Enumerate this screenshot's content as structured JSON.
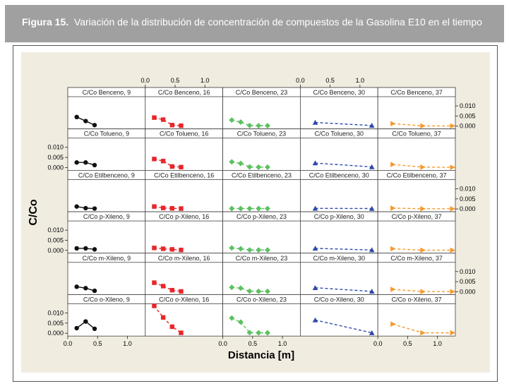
{
  "figure": {
    "label": "Figura 15.",
    "caption": "Variación de la distribución de concentración de compuestos de la Gasolina E10 en el tiempo"
  },
  "chart_data": {
    "type": "scatter",
    "title": "",
    "xlabel": "Distancia [m]",
    "ylabel": "C/Co",
    "xlim": [
      0,
      1.3
    ],
    "ylim": [
      0,
      0.0135
    ],
    "x_ticks": [
      0.0,
      0.5,
      1.0
    ],
    "x_tick_labels": [
      "0.0",
      "0.5",
      "1.0"
    ],
    "y_ticks": [
      0.0,
      0.005,
      0.01
    ],
    "y_tick_labels": [
      "0.000",
      "0.005",
      "0.010"
    ],
    "grid": false,
    "compounds": [
      "Benceno",
      "Tolueno",
      "Etilbenceno",
      "p-Xileno",
      "m-Xileno",
      "o-Xileno"
    ],
    "days": [
      9,
      16,
      23,
      30,
      37
    ],
    "series_colors": {
      "9": "#111111",
      "16": "#e8262b",
      "23": "#5cc160",
      "30": "#2e4aa8",
      "37": "#f59a2f"
    },
    "series_markers": {
      "9": "circle",
      "16": "square",
      "23": "diamond",
      "30": "triangle",
      "37": "triangle-right"
    },
    "panels": [
      {
        "title": "C/Co Benceno, 9",
        "row": 0,
        "col": 0,
        "x": [
          0.15,
          0.3,
          0.45
        ],
        "y": [
          0.0045,
          0.0025,
          0.0005
        ]
      },
      {
        "title": "C/Co Benceno, 16",
        "row": 0,
        "col": 1,
        "x": [
          0.15,
          0.3,
          0.45,
          0.6
        ],
        "y": [
          0.0042,
          0.0032,
          0.0005,
          0.0002
        ]
      },
      {
        "title": "C/Co Benceno, 23",
        "row": 0,
        "col": 2,
        "x": [
          0.15,
          0.3,
          0.45,
          0.6,
          0.75
        ],
        "y": [
          0.003,
          0.002,
          0.0003,
          0.0002,
          0.0002
        ]
      },
      {
        "title": "C/Co Benceno, 30",
        "row": 0,
        "col": 3,
        "x": [
          0.25,
          1.2
        ],
        "y": [
          0.0018,
          0.0003
        ]
      },
      {
        "title": "C/Co Benceno, 37",
        "row": 0,
        "col": 4,
        "x": [
          0.25,
          0.75,
          1.25
        ],
        "y": [
          0.0012,
          0.0001,
          0.0001
        ]
      },
      {
        "title": "C/Co Tolueno, 9",
        "row": 1,
        "col": 0,
        "x": [
          0.15,
          0.3,
          0.45
        ],
        "y": [
          0.0025,
          0.0025,
          0.0012
        ]
      },
      {
        "title": "C/Co Tolueno, 16",
        "row": 1,
        "col": 1,
        "x": [
          0.15,
          0.3,
          0.45,
          0.6
        ],
        "y": [
          0.0042,
          0.0032,
          0.0005,
          0.0002
        ]
      },
      {
        "title": "C/Co Tolueno, 23",
        "row": 1,
        "col": 2,
        "x": [
          0.15,
          0.3,
          0.45,
          0.6,
          0.75
        ],
        "y": [
          0.0028,
          0.002,
          0.0003,
          0.0002,
          0.0002
        ]
      },
      {
        "title": "C/Co Tolueno, 30",
        "row": 1,
        "col": 3,
        "x": [
          0.25,
          1.2
        ],
        "y": [
          0.0022,
          0.0003
        ]
      },
      {
        "title": "C/Co Tolueno, 37",
        "row": 1,
        "col": 4,
        "x": [
          0.25,
          0.75,
          1.25
        ],
        "y": [
          0.0015,
          0.0002,
          0.0001
        ]
      },
      {
        "title": "C/Co Etilbenceno, 9",
        "row": 2,
        "col": 0,
        "x": [
          0.15,
          0.3,
          0.45
        ],
        "y": [
          0.0012,
          0.0004,
          0.0002
        ]
      },
      {
        "title": "C/Co Etilbenceno, 16",
        "row": 2,
        "col": 1,
        "x": [
          0.15,
          0.3,
          0.45,
          0.6
        ],
        "y": [
          0.0012,
          0.0005,
          0.0003,
          0.0002
        ]
      },
      {
        "title": "C/Co Etilbenceno, 23",
        "row": 2,
        "col": 2,
        "x": [
          0.15,
          0.3,
          0.45,
          0.6,
          0.75
        ],
        "y": [
          0.0002,
          0.0002,
          0.0002,
          0.0002,
          0.0002
        ]
      },
      {
        "title": "C/Co Etilbenceno, 30",
        "row": 2,
        "col": 3,
        "x": [
          0.25,
          1.2
        ],
        "y": [
          0.0003,
          0.0002
        ]
      },
      {
        "title": "C/Co Etilbenceno, 37",
        "row": 2,
        "col": 4,
        "x": [
          0.25,
          0.75,
          1.25
        ],
        "y": [
          0.0004,
          0.0001,
          0.0001
        ]
      },
      {
        "title": "C/Co p-Xileno, 9",
        "row": 3,
        "col": 0,
        "x": [
          0.15,
          0.3,
          0.45
        ],
        "y": [
          0.001,
          0.001,
          0.0005
        ]
      },
      {
        "title": "C/Co p-Xileno, 16",
        "row": 3,
        "col": 1,
        "x": [
          0.15,
          0.3,
          0.45,
          0.6
        ],
        "y": [
          0.0012,
          0.0008,
          0.0005,
          0.0002
        ]
      },
      {
        "title": "C/Co p-Xileno, 23",
        "row": 3,
        "col": 2,
        "x": [
          0.15,
          0.3,
          0.45,
          0.6,
          0.75
        ],
        "y": [
          0.0012,
          0.0008,
          0.0002,
          0.0002,
          0.0002
        ]
      },
      {
        "title": "C/Co p-Xileno, 30",
        "row": 3,
        "col": 3,
        "x": [
          0.25,
          1.2
        ],
        "y": [
          0.001,
          0.0002
        ]
      },
      {
        "title": "C/Co p-Xileno, 37",
        "row": 3,
        "col": 4,
        "x": [
          0.25,
          0.75,
          1.25
        ],
        "y": [
          0.0008,
          0.0001,
          0.0001
        ]
      },
      {
        "title": "C/Co m-Xileno, 9",
        "row": 4,
        "col": 0,
        "x": [
          0.15,
          0.3,
          0.45
        ],
        "y": [
          0.0025,
          0.0018,
          0.0005
        ]
      },
      {
        "title": "C/Co m-Xileno, 16",
        "row": 4,
        "col": 1,
        "x": [
          0.15,
          0.3,
          0.45,
          0.6
        ],
        "y": [
          0.0045,
          0.0028,
          0.0008,
          0.0002
        ]
      },
      {
        "title": "C/Co m-Xileno, 23",
        "row": 4,
        "col": 2,
        "x": [
          0.15,
          0.3,
          0.45,
          0.6,
          0.75
        ],
        "y": [
          0.0022,
          0.0018,
          0.0003,
          0.0002,
          0.0002
        ]
      },
      {
        "title": "C/Co m-Xileno, 30",
        "row": 4,
        "col": 3,
        "x": [
          0.25,
          1.2
        ],
        "y": [
          0.002,
          0.0002
        ]
      },
      {
        "title": "C/Co m-Xileno, 37",
        "row": 4,
        "col": 4,
        "x": [
          0.25,
          0.75,
          1.25
        ],
        "y": [
          0.0012,
          0.0001,
          0.0001
        ]
      },
      {
        "title": "C/Co o-Xileno, 9",
        "row": 5,
        "col": 0,
        "x": [
          0.15,
          0.3,
          0.45
        ],
        "y": [
          0.0025,
          0.0058,
          0.0022
        ]
      },
      {
        "title": "C/Co o-Xileno, 16",
        "row": 5,
        "col": 1,
        "x": [
          0.15,
          0.3,
          0.45,
          0.6
        ],
        "y": [
          0.0135,
          0.0078,
          0.0032,
          0.0002
        ]
      },
      {
        "title": "C/Co o-Xileno, 23",
        "row": 5,
        "col": 2,
        "x": [
          0.15,
          0.3,
          0.45,
          0.6,
          0.75
        ],
        "y": [
          0.0075,
          0.0055,
          0.0003,
          0.0002,
          0.0002
        ]
      },
      {
        "title": "C/Co o-Xileno, 30",
        "row": 5,
        "col": 3,
        "x": [
          0.25,
          1.2
        ],
        "y": [
          0.0065,
          0.0002
        ]
      },
      {
        "title": "C/Co o-Xileno, 37",
        "row": 5,
        "col": 4,
        "x": [
          0.25,
          0.75,
          1.25
        ],
        "y": [
          0.0045,
          0.0002,
          0.0002
        ]
      }
    ]
  }
}
